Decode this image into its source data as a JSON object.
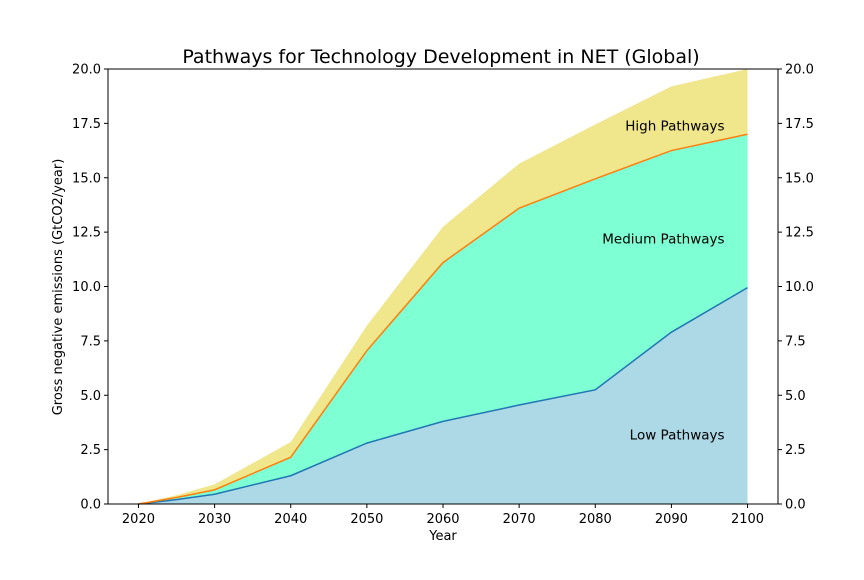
{
  "chart_data": {
    "type": "area",
    "title": "Pathways for Technology Development in NET (Global)",
    "xlabel": "Year",
    "ylabel": "Gross negative emissions (GtCO2/year)",
    "x": [
      2020,
      2025,
      2030,
      2040,
      2050,
      2060,
      2070,
      2080,
      2090,
      2100
    ],
    "xticks": [
      "2020",
      "2030",
      "2040",
      "2050",
      "2060",
      "2070",
      "2080",
      "2090",
      "2100"
    ],
    "xlim": [
      2016,
      2104
    ],
    "ylim": [
      0,
      20
    ],
    "yticks": [
      "0.0",
      "2.5",
      "5.0",
      "7.5",
      "10.0",
      "12.5",
      "15.0",
      "17.5",
      "20.0"
    ],
    "secondary_yaxis": true,
    "series": [
      {
        "name": "Low Pathways",
        "values": [
          0,
          0.2,
          0.45,
          1.3,
          2.8,
          3.8,
          4.55,
          5.25,
          7.9,
          9.95
        ],
        "fill": "#add8e6",
        "line": "#1f77b4"
      },
      {
        "name": "Medium Pathways",
        "values": [
          0,
          0.3,
          0.65,
          2.15,
          7.05,
          11.1,
          13.6,
          14.95,
          16.25,
          17.0
        ],
        "fill": "#7fffd4",
        "line": "#ff7f0e"
      },
      {
        "name": "High Pathways",
        "values": [
          0,
          0.4,
          0.9,
          2.85,
          8.2,
          12.75,
          15.65,
          17.45,
          19.2,
          20.2
        ],
        "fill": "#f0e68c",
        "line": null
      }
    ],
    "annotations": [
      {
        "text": "High Pathways",
        "x": 2100,
        "y": 17.4,
        "ha": "right"
      },
      {
        "text": "Medium Pathways",
        "x": 2100,
        "y": 12.2,
        "ha": "right"
      },
      {
        "text": "Low Pathways",
        "x": 2100,
        "y": 3.2,
        "ha": "right"
      }
    ],
    "grid": false,
    "legend": "none"
  }
}
